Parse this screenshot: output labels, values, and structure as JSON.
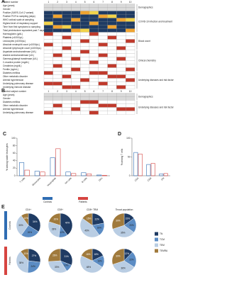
{
  "panel_a": {
    "label": "A",
    "header": "Patient number",
    "columns": [
      "1",
      "2",
      "3",
      "4",
      "5",
      "6",
      "7",
      "8",
      "9",
      "10"
    ],
    "rows": [
      "Age (years)",
      "Gender",
      "Positive (SARS-CoV-2 variant)",
      "Positive PCR to sampling (days)",
      "WHO ordinal scale at sampling",
      "Highest level of respiratory support",
      "Time from first symptoms to sampling",
      "Total prednisolone equivalent past 7 days",
      "Haemoglobin (g/dL)",
      "Platelets (x1000/µL)",
      "Leukocytes (x1000/µL)",
      "Absolute neutrophil count (x1000/µL)",
      "Absolute lymphocyte count (x1000/µL)",
      "Aspartate aminotransferase (U/L)",
      "Alanine aminotransferase (U/L)",
      "Gamma-glutamyl transferase (U/L)",
      "C-reactive protein (mg/dL)",
      "Creatinine (mg/dL)",
      "Ferritin (ng/mL)",
      "Diabetes mellitus",
      "Other metabolic disorder",
      "Arterial hypertension",
      "Underlying pulmonary disease",
      "Underlying immune disease"
    ],
    "groups": [
      "Demographics",
      "COVID-19 infection and treatment",
      "Blood count",
      "Clinical chemistry",
      "Underlying diseases and risk factors"
    ]
  },
  "panel_b": {
    "label": "B",
    "header": "Control subject number",
    "columns": [
      "1",
      "2",
      "3",
      "4",
      "5",
      "6",
      "7",
      "8",
      "9",
      "10"
    ],
    "rows": [
      "Age (years)",
      "Gender",
      "Diabetes mellitus",
      "Other metabolic disorder",
      "Arterial hypertension",
      "Underlying pulmonary disease"
    ],
    "groups": [
      "Demographics",
      "Underlying diseases and risk factors"
    ]
  },
  "chart_data": [
    {
      "type": "bar",
      "label": "C",
      "y_label": "% among viable leukocytes",
      "categories": [
        "T cells",
        "Monocytes",
        "Neutrophils",
        "NK cells",
        "B cells",
        "DCs"
      ],
      "series": [
        {
          "name": "Controls",
          "color": "#2f6db3",
          "values": [
            35,
            12,
            48,
            10,
            8,
            2
          ]
        },
        {
          "name": "Patients",
          "color": "#d64541",
          "values": [
            15,
            10,
            72,
            6,
            5,
            1
          ]
        }
      ],
      "ylim": [
        0,
        100
      ],
      "yticks": [
        0,
        20,
        40,
        60,
        80,
        100
      ]
    },
    {
      "type": "bar",
      "label": "D",
      "y_label": "% among T cells",
      "categories": [
        "CD4",
        "CD8",
        "DN"
      ],
      "series": [
        {
          "name": "Controls",
          "color": "#2f6db3",
          "values": [
            62,
            30,
            5
          ]
        },
        {
          "name": "Patients",
          "color": "#d64541",
          "values": [
            58,
            33,
            6
          ]
        }
      ],
      "ylim": [
        0,
        100
      ],
      "yticks": [
        0,
        50,
        100
      ]
    },
    {
      "type": "pie",
      "label": "E",
      "columns": [
        "CD4+",
        "CD8+",
        "CD8+ TRM",
        "Throat population"
      ],
      "rows": [
        "Controls",
        "Patients"
      ],
      "slice_names": [
        "TN",
        "TCM",
        "TEM",
        "TEMRA"
      ],
      "colors": [
        "#1f3b63",
        "#5b8cc4",
        "#b9cde3",
        "#a07a3c"
      ],
      "pies": [
        {
          "values": [
            34,
            26,
            30,
            10
          ],
          "value_labels": [
            "34%",
            "26%",
            "30%",
            "10%"
          ]
        },
        {
          "values": [
            40,
            12,
            28,
            20
          ],
          "value_labels": [
            "40%",
            "12%",
            "28%",
            "20%"
          ]
        },
        {
          "values": [
            22,
            18,
            45,
            15
          ],
          "value_labels": [
            "22%",
            "18%",
            "45%",
            "15%"
          ]
        },
        {
          "values": [
            15,
            20,
            35,
            30
          ],
          "value_labels": [
            "15%",
            "20%",
            "35%",
            "30%"
          ]
        },
        {
          "values": [
            27,
            24,
            38,
            11
          ],
          "value_labels": [
            "27%",
            "24%",
            "38%",
            "11%"
          ]
        },
        {
          "values": [
            31,
            10,
            33,
            26
          ],
          "value_labels": [
            "31%",
            "10%",
            "33%",
            "26%"
          ]
        },
        {
          "values": [
            18,
            16,
            48,
            18
          ],
          "value_labels": [
            "18%",
            "16%",
            "48%",
            "18%"
          ]
        },
        {
          "values": [
            12,
            22,
            36,
            30
          ],
          "value_labels": [
            "12%",
            "22%",
            "36%",
            "30%"
          ]
        }
      ]
    }
  ]
}
